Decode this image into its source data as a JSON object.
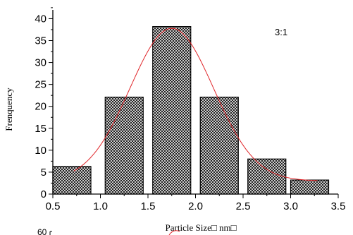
{
  "chart_data": {
    "type": "bar",
    "xlabel": "Particle Size□ nm□",
    "ylabel": "Frenquency",
    "annotation": "3:1",
    "xlim": [
      0.5,
      3.5
    ],
    "ylim": [
      0,
      42
    ],
    "x_ticks": [
      "0.5",
      "1.0",
      "1.5",
      "2.0",
      "2.5",
      "3.0",
      "3.5"
    ],
    "y_ticks": [
      "0",
      "5",
      "10",
      "15",
      "20",
      "25",
      "30",
      "35",
      "40"
    ],
    "bin_width": 0.4,
    "bins": [
      {
        "center": 0.7,
        "value": 6.3
      },
      {
        "center": 1.25,
        "value": 22.1
      },
      {
        "center": 1.75,
        "value": 38.2
      },
      {
        "center": 2.25,
        "value": 22.1
      },
      {
        "center": 2.75,
        "value": 8.0
      },
      {
        "center": 3.2,
        "value": 3.2
      }
    ],
    "fit_curve": {
      "type": "gaussian",
      "color": "#e0262a",
      "peak": 37.8,
      "center": 1.75,
      "sigma": 0.44,
      "baseline": 3.0,
      "x_range": [
        0.72,
        3.28
      ]
    },
    "bar_fill": "crosshatch",
    "grid": false,
    "legend": "none"
  },
  "below_chart": {
    "partial_tick_label": "60"
  }
}
